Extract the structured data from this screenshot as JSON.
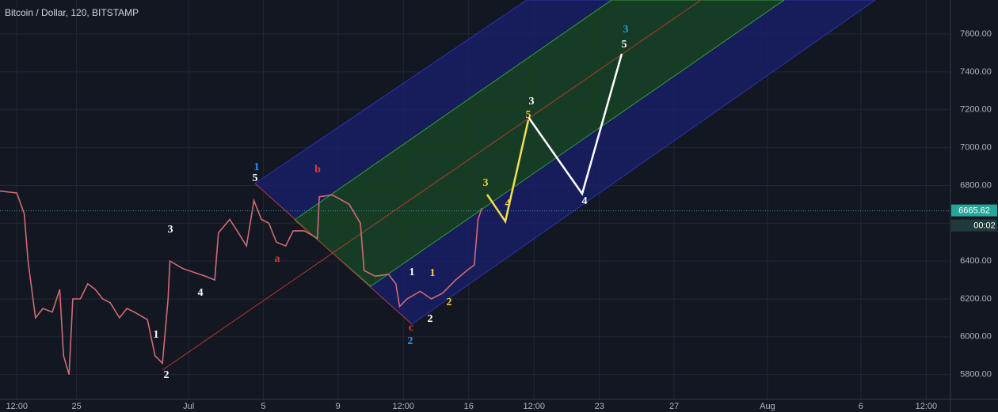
{
  "chart_data": {
    "type": "line",
    "title": "Bitcoin / Dollar, 120, BITSTAMP",
    "color": "#d06b73",
    "x": [
      -10.1,
      -9.2,
      -8.8,
      -8.6,
      -8.2,
      -7.8,
      -7.3,
      -6.9,
      -6.7,
      -6.4,
      -6.2,
      -5.8,
      -5.4,
      -5.0,
      -4.6,
      -4.2,
      -3.7,
      -3.3,
      -2.9,
      -2.2,
      -1.8,
      -1.4,
      -1.1,
      -1.0,
      -0.3,
      0.3,
      0.9,
      1.4,
      1.6,
      2.2,
      2.6,
      3.1,
      3.5,
      3.9,
      4.3,
      4.7,
      5.2,
      5.6,
      6.2,
      6.9,
      7.0,
      7.7,
      8.6,
      9.2,
      9.4,
      10.0,
      10.7,
      11.1,
      11.3,
      11.7,
      12.4,
      13.0,
      13.6,
      14.3,
      14.9,
      15.3,
      15.5,
      15.7
    ],
    "values": [
      6770,
      6760,
      6650,
      6400,
      6100,
      6150,
      6130,
      6250,
      5900,
      5800,
      6200,
      6200,
      6280,
      6250,
      6200,
      6180,
      6100,
      6150,
      6130,
      6090,
      5900,
      5860,
      6200,
      6400,
      6360,
      6340,
      6320,
      6300,
      6550,
      6620,
      6560,
      6480,
      6720,
      6620,
      6600,
      6500,
      6480,
      6560,
      6560,
      6520,
      6740,
      6750,
      6700,
      6600,
      6350,
      6320,
      6330,
      6280,
      6160,
      6200,
      6240,
      6200,
      6230,
      6300,
      6350,
      6380,
      6620,
      6680
    ],
    "xlim": [
      -10.1,
      40.8
    ],
    "xticks": [
      {
        "value": -9.2,
        "label": "12:00"
      },
      {
        "value": -6,
        "label": "25"
      },
      {
        "value": 0,
        "label": "Jul"
      },
      {
        "value": 4,
        "label": "5"
      },
      {
        "value": 8,
        "label": "9"
      },
      {
        "value": 11.5,
        "label": "12:00"
      },
      {
        "value": 15,
        "label": "16"
      },
      {
        "value": 18.5,
        "label": "12:00"
      },
      {
        "value": 22,
        "label": "23"
      },
      {
        "value": 26,
        "label": "27"
      },
      {
        "value": 31,
        "label": "Aug"
      },
      {
        "value": 36,
        "label": "6"
      },
      {
        "value": 39.5,
        "label": "12:00"
      }
    ],
    "ylim": [
      5690,
      7780
    ],
    "yticks": [
      {
        "value": 5800,
        "label": "5800.00"
      },
      {
        "value": 6000,
        "label": "6000.00"
      },
      {
        "value": 6200,
        "label": "6200.00"
      },
      {
        "value": 6400,
        "label": "6400.00"
      },
      {
        "value": 6600,
        "label": "6600.00"
      },
      {
        "value": 6800,
        "label": "6800.00"
      },
      {
        "value": 7000,
        "label": "7000.00"
      },
      {
        "value": 7200,
        "label": "7200.00"
      },
      {
        "value": 7400,
        "label": "7400.00"
      },
      {
        "value": 7600,
        "label": "7600.00"
      }
    ],
    "grid": true,
    "last_price": {
      "value": 6665.62,
      "label": "6665.62"
    },
    "countdown": "00:02",
    "annotations": [
      {
        "text": "1",
        "color": "#2196f3"
      },
      {
        "text": "5",
        "color": "#ffffff"
      },
      {
        "text": "b",
        "color": "#e53935"
      },
      {
        "text": "a",
        "color": "#e53935"
      },
      {
        "text": "3",
        "color": "#ffffff"
      },
      {
        "text": "4",
        "color": "#ffffff"
      },
      {
        "text": "1",
        "color": "#ffffff"
      },
      {
        "text": "2",
        "color": "#ffffff"
      },
      {
        "text": "c",
        "color": "#e53935"
      },
      {
        "text": "2",
        "color": "#2196f3"
      },
      {
        "text": "1",
        "color": "#ffffff"
      },
      {
        "text": "1",
        "color": "#f4d03f"
      },
      {
        "text": "2",
        "color": "#ffffff"
      },
      {
        "text": "2",
        "color": "#f4d03f"
      },
      {
        "text": "3",
        "color": "#f4d03f"
      },
      {
        "text": "4",
        "color": "#f4d03f"
      },
      {
        "text": "3",
        "color": "#ffffff"
      },
      {
        "text": "5",
        "color": "#f4d03f"
      },
      {
        "text": "4",
        "color": "#ffffff"
      },
      {
        "text": "3",
        "color": "#2196f3"
      },
      {
        "text": "5",
        "color": "#ffffff"
      }
    ]
  }
}
